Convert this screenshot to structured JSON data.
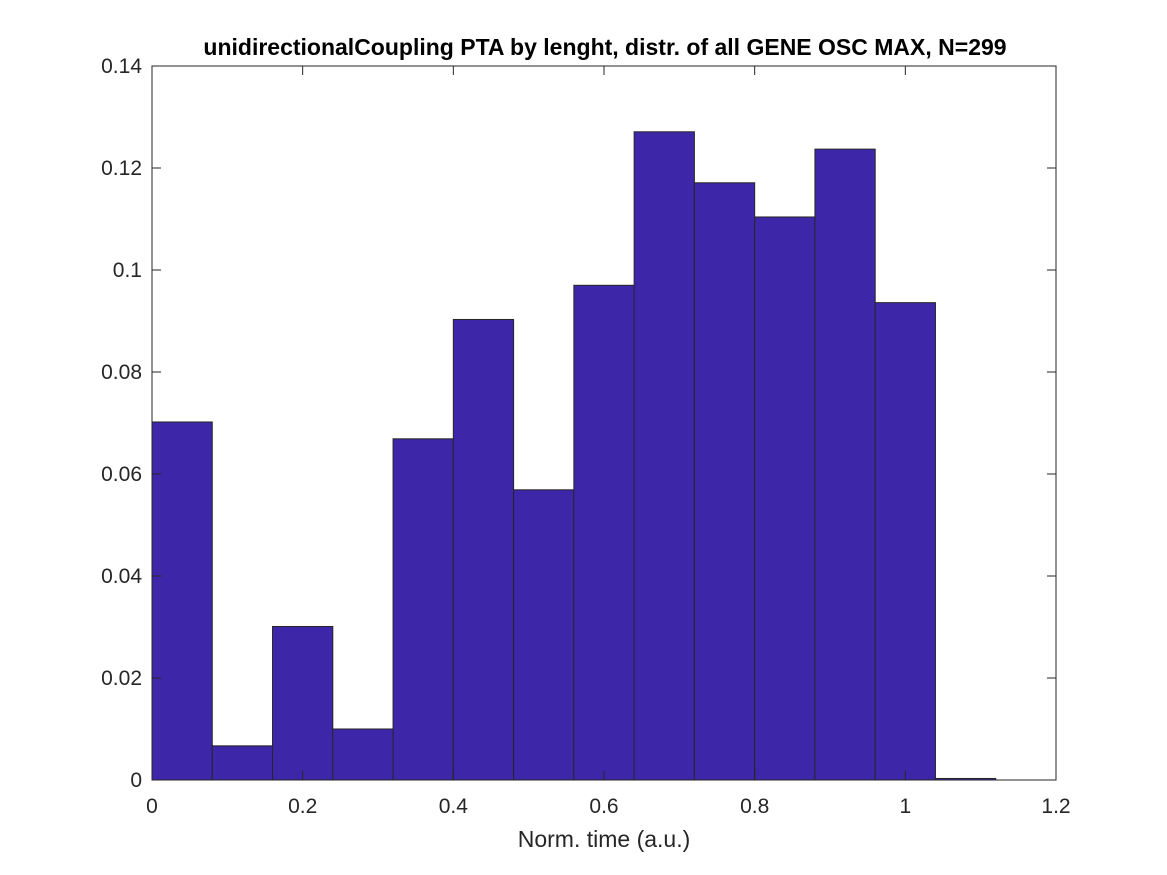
{
  "chart_data": {
    "type": "bar",
    "title": "unidirectionalCoupling PTA by lenght, distr. of all GENE OSC MAX, N=299",
    "xlabel": "Norm. time (a.u.)",
    "ylabel": "",
    "xlim": [
      0,
      1.2
    ],
    "ylim": [
      0,
      0.14
    ],
    "xticks": [
      "0",
      "0.2",
      "0.4",
      "0.6",
      "0.8",
      "1",
      "1.2"
    ],
    "yticks": [
      "0",
      "0.02",
      "0.04",
      "0.06",
      "0.08",
      "0.1",
      "0.12",
      "0.14"
    ],
    "bin_edges": [
      0,
      0.08,
      0.16,
      0.24,
      0.32,
      0.4,
      0.48,
      0.56,
      0.64,
      0.72,
      0.8,
      0.88,
      0.96,
      1.04,
      1.12
    ],
    "values": [
      0.0702,
      0.0067,
      0.0301,
      0.01,
      0.0669,
      0.0903,
      0.0569,
      0.097,
      0.1271,
      0.1171,
      0.1104,
      0.1237,
      0.0936,
      0.0003
    ],
    "bar_color": "#3d26a8",
    "edge_color": "#262626",
    "grid": false,
    "legend": "none"
  }
}
